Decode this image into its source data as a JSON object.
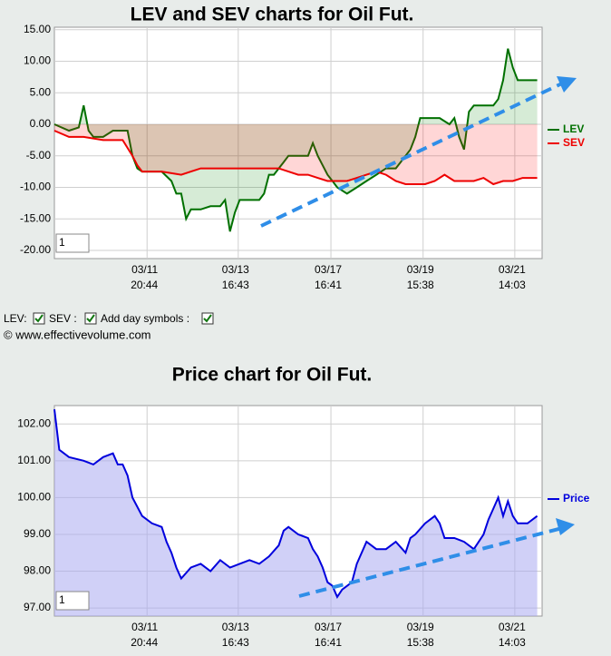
{
  "chart_data": [
    {
      "type": "area",
      "title": "LEV and SEV charts for Oil Fut.",
      "xlim": [
        0,
        100
      ],
      "xticks": [
        {
          "value": 19,
          "label": "03/11 20:44"
        },
        {
          "value": 37.7,
          "label": "03/13 16:43"
        },
        {
          "value": 56.7,
          "label": "03/17 16:41"
        },
        {
          "value": 75.6,
          "label": "03/19 15:38"
        },
        {
          "value": 94.4,
          "label": "03/21 14:03"
        }
      ],
      "ylim": [
        -21.3,
        15.4
      ],
      "yticks": [
        {
          "value": 15,
          "label": "15.00"
        },
        {
          "value": 10,
          "label": "10.00"
        },
        {
          "value": 5,
          "label": "5.00"
        },
        {
          "value": 0,
          "label": "0.00"
        },
        {
          "value": -5,
          "label": "-5.00"
        },
        {
          "value": -10,
          "label": "-10.00"
        },
        {
          "value": -15,
          "label": "-15.00"
        },
        {
          "value": -20,
          "label": "-20.00"
        }
      ],
      "grid": true,
      "legend": "right",
      "zoom_input": "1",
      "series": [
        {
          "name": "LEV",
          "color": "#007000",
          "fill": "rgba(0,128,0,0.16)",
          "x": [
            0,
            3,
            5,
            6,
            7,
            8,
            10,
            12,
            14,
            15,
            16,
            17,
            18,
            20,
            22,
            24,
            25,
            26,
            27,
            28,
            30,
            32,
            34,
            35,
            36,
            37,
            38,
            40,
            42,
            43,
            44,
            45,
            46,
            47,
            48,
            50,
            52,
            53,
            54,
            56,
            57,
            58,
            60,
            62,
            64,
            66,
            68,
            70,
            72,
            73,
            74,
            75,
            77,
            79,
            81,
            82,
            83,
            84,
            85,
            86,
            88,
            90,
            91,
            92,
            93,
            94,
            95,
            97,
            99
          ],
          "values": [
            0,
            -1,
            -0.5,
            3,
            -1,
            -2,
            -2,
            -1,
            -1,
            -1,
            -5,
            -7,
            -7.5,
            -7.5,
            -7.5,
            -9,
            -11,
            -11,
            -15,
            -13.5,
            -13.5,
            -13,
            -13,
            -12,
            -17,
            -14,
            -12,
            -12,
            -12,
            -11,
            -8,
            -8,
            -7,
            -6,
            -5,
            -5,
            -5,
            -3,
            -5,
            -8,
            -9,
            -10,
            -11,
            -10,
            -9,
            -8,
            -7,
            -7,
            -5,
            -4,
            -2,
            1,
            1,
            1,
            0,
            1,
            -2,
            -4,
            2,
            3,
            3,
            3,
            4,
            7,
            12,
            9,
            7,
            7,
            7
          ]
        },
        {
          "name": "SEV",
          "color": "#ee0000",
          "fill": "rgba(255,0,0,0.16)",
          "x": [
            0,
            3,
            6,
            10,
            14,
            16,
            17,
            18,
            22,
            26,
            28,
            30,
            34,
            38,
            42,
            44,
            46,
            48,
            50,
            52,
            54,
            56,
            58,
            60,
            62,
            64,
            66,
            68,
            70,
            72,
            74,
            76,
            78,
            80,
            82,
            84,
            86,
            88,
            90,
            92,
            94,
            96,
            99
          ],
          "values": [
            -1,
            -2,
            -2,
            -2.5,
            -2.5,
            -5,
            -6.5,
            -7.5,
            -7.5,
            -8,
            -7.5,
            -7,
            -7,
            -7,
            -7,
            -7,
            -7,
            -7.5,
            -8,
            -8,
            -8.5,
            -9,
            -9,
            -9,
            -8.5,
            -8,
            -7.5,
            -8,
            -9,
            -9.5,
            -9.5,
            -9.5,
            -9,
            -8,
            -9,
            -9,
            -9,
            -8.5,
            -9.5,
            -9,
            -9,
            -8.5,
            -8.5
          ]
        }
      ]
    },
    {
      "type": "area",
      "title": "Price chart for Oil Fut.",
      "xlim": [
        0,
        100
      ],
      "xticks": [
        {
          "value": 19,
          "label": "03/11 20:44"
        },
        {
          "value": 37.7,
          "label": "03/13 16:43"
        },
        {
          "value": 56.7,
          "label": "03/17 16:41"
        },
        {
          "value": 75.6,
          "label": "03/19 15:38"
        },
        {
          "value": 94.4,
          "label": "03/21 14:03"
        }
      ],
      "ylim": [
        96.78,
        102.5
      ],
      "yticks": [
        {
          "value": 102,
          "label": "102.00"
        },
        {
          "value": 101,
          "label": "101.00"
        },
        {
          "value": 100,
          "label": "100.00"
        },
        {
          "value": 99,
          "label": "99.00"
        },
        {
          "value": 98,
          "label": "98.00"
        },
        {
          "value": 97,
          "label": "97.00"
        }
      ],
      "grid": true,
      "legend": "right",
      "zoom_input": "1",
      "series": [
        {
          "name": "Price",
          "color": "#0000dd",
          "fill": "rgba(170,170,240,0.55)",
          "x": [
            0,
            1,
            3,
            6,
            8,
            10,
            12,
            13,
            14,
            15,
            16,
            18,
            20,
            22,
            23,
            24,
            25,
            26,
            28,
            30,
            32,
            34,
            36,
            38,
            40,
            42,
            44,
            46,
            47,
            48,
            50,
            52,
            53,
            54,
            55,
            56,
            57,
            58,
            59,
            61,
            62,
            64,
            66,
            68,
            70,
            72,
            73,
            74,
            76,
            78,
            79,
            80,
            82,
            84,
            86,
            88,
            89,
            90,
            91,
            92,
            93,
            94,
            95,
            97,
            99
          ],
          "values": [
            102.4,
            101.3,
            101.1,
            101.0,
            100.9,
            101.1,
            101.2,
            100.9,
            100.9,
            100.6,
            100.0,
            99.5,
            99.3,
            99.2,
            98.8,
            98.5,
            98.1,
            97.8,
            98.1,
            98.2,
            98.0,
            98.3,
            98.1,
            98.2,
            98.3,
            98.2,
            98.4,
            98.7,
            99.1,
            99.2,
            99.0,
            98.9,
            98.6,
            98.4,
            98.1,
            97.7,
            97.6,
            97.3,
            97.5,
            97.7,
            98.2,
            98.8,
            98.6,
            98.6,
            98.8,
            98.5,
            98.9,
            99.0,
            99.3,
            99.5,
            99.3,
            98.9,
            98.9,
            98.8,
            98.6,
            99.0,
            99.4,
            99.7,
            100.0,
            99.5,
            99.9,
            99.5,
            99.3,
            99.3,
            99.5
          ]
        }
      ]
    }
  ],
  "controls": {
    "lev": "LEV:",
    "sev": "SEV :",
    "day_symbols": "Add day symbols :"
  },
  "copyright": "© www.effectivevolume.com"
}
